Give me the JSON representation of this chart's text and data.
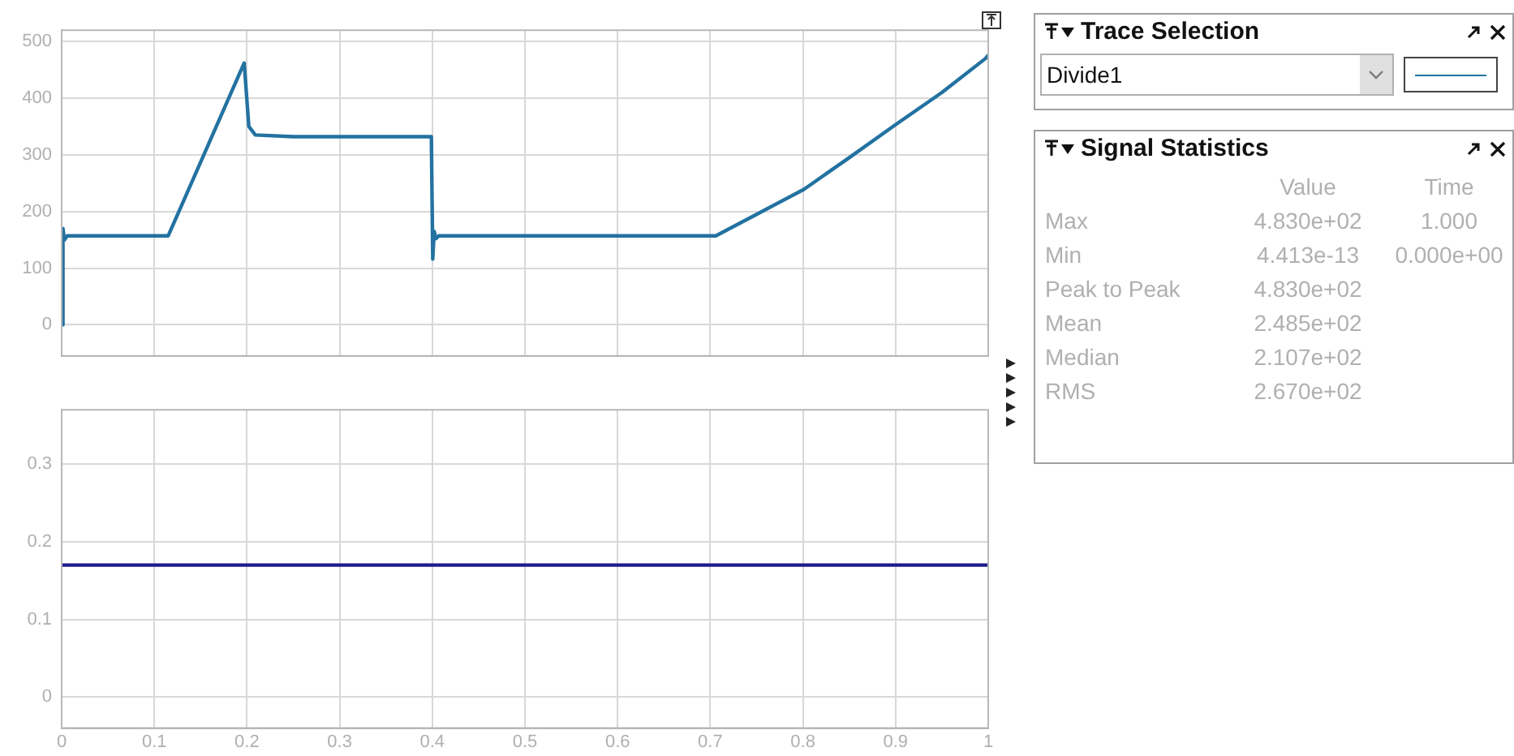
{
  "chart_data": [
    {
      "type": "line",
      "xlim": [
        0,
        1
      ],
      "ylim": [
        -55,
        520
      ],
      "xticks": [
        0,
        0.1,
        0.2,
        0.3,
        0.4,
        0.5,
        0.6,
        0.7,
        0.8,
        0.9,
        1
      ],
      "yticks": [
        0,
        100,
        200,
        300,
        400,
        500
      ],
      "grid": true,
      "tick_labels": "y",
      "marker": "none",
      "series": [
        {
          "color": "#2372a1",
          "x": [
            0,
            0.0014,
            0.003,
            0.006,
            0.115,
            0.197,
            0.202,
            0.209,
            0.25,
            0.3,
            0.35,
            0.399,
            0.4005,
            0.402,
            0.404,
            0.407,
            0.5,
            0.6,
            0.706,
            0.75,
            0.801,
            0.85,
            0.899,
            0.95,
            0.997,
            1
          ],
          "values": [
            0,
            170,
            150,
            157,
            157,
            462,
            350,
            335,
            332,
            332,
            332,
            332,
            116,
            165,
            152,
            157,
            157,
            157,
            157,
            195,
            239,
            295,
            352,
            410,
            470,
            476
          ]
        }
      ]
    },
    {
      "type": "line",
      "xlim": [
        0,
        1
      ],
      "ylim": [
        -0.04,
        0.37
      ],
      "xticks": [
        0,
        0.1,
        0.2,
        0.3,
        0.4,
        0.5,
        0.6,
        0.7,
        0.8,
        0.9,
        1
      ],
      "yticks": [
        0,
        0.1,
        0.2,
        0.3
      ],
      "grid": true,
      "marker": "none",
      "series": [
        {
          "color": "#1c1c8a",
          "x": [
            0,
            1
          ],
          "values": [
            0.17,
            0.17
          ]
        }
      ]
    },
    {
      "type": "other",
      "title": "Trace Selection",
      "annotations": [
        "Divide1"
      ]
    },
    {
      "type": "other",
      "title": "Signal Statistics",
      "categories": [
        "Max",
        "Min",
        "Peak to Peak",
        "Mean",
        "Median",
        "RMS"
      ],
      "series": [
        {
          "name": "Value",
          "values": [
            483,
            4.413e-13,
            483,
            248.5,
            210.7,
            267
          ],
          "value_labels": [
            "4.830e+02",
            "4.413e-13",
            "4.830e+02",
            "2.485e+02",
            "2.107e+02",
            "2.670e+02"
          ]
        },
        {
          "name": "Time",
          "values": [
            1,
            0,
            null,
            null,
            null,
            null
          ],
          "value_labels": [
            "1.000",
            "0.000e+00",
            null,
            null,
            null,
            null
          ]
        }
      ]
    }
  ]
}
